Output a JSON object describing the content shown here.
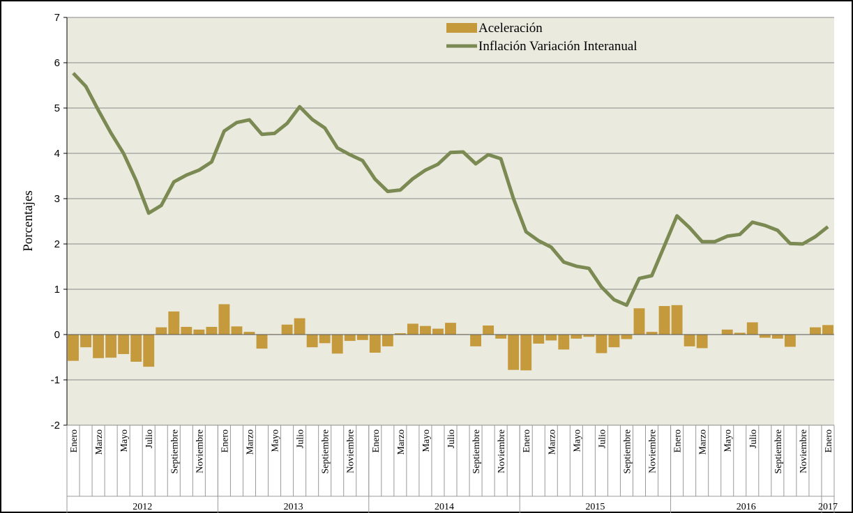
{
  "chart_data": {
    "type": "combo",
    "y_label": "Porcentajes",
    "categories": [
      "Enero",
      null,
      "Marzo",
      null,
      "Mayo",
      null,
      "Julio",
      null,
      "Septiembre",
      null,
      "Noviembre",
      null,
      "Enero",
      null,
      "Marzo",
      null,
      "Mayo",
      null,
      "Julio",
      null,
      "Septiembre",
      null,
      "Noviembre",
      null,
      "Enero",
      null,
      "Marzo",
      null,
      "Mayo",
      null,
      "Julio",
      null,
      "Septiembre",
      null,
      "Noviembre",
      null,
      "Enero",
      null,
      "Marzo",
      null,
      "Mayo",
      null,
      "Julio",
      null,
      "Septiembre",
      null,
      "Noviembre",
      null,
      "Enero",
      null,
      "Marzo",
      null,
      "Mayo",
      null,
      "Julio",
      null,
      "Septiembre",
      null,
      "Noviembre",
      null,
      "Enero"
    ],
    "year_labels": [
      "2012",
      "2013",
      "2014",
      "2015",
      "2016",
      "2017"
    ],
    "series": [
      {
        "name": "Aceleración",
        "type": "bar",
        "color": "#c49a3c",
        "values": [
          -0.58,
          -0.28,
          -0.52,
          -0.51,
          -0.43,
          -0.6,
          -0.71,
          0.16,
          0.51,
          0.17,
          0.11,
          0.17,
          0.67,
          0.18,
          0.06,
          -0.31,
          0.01,
          0.22,
          0.36,
          -0.28,
          -0.19,
          -0.42,
          -0.14,
          -0.12,
          -0.4,
          -0.26,
          0.03,
          0.24,
          0.19,
          0.13,
          0.26,
          0.01,
          -0.26,
          0.2,
          -0.09,
          -0.78,
          -0.79,
          -0.2,
          -0.13,
          -0.33,
          -0.09,
          -0.05,
          -0.41,
          -0.28,
          -0.1,
          0.58,
          0.06,
          0.63,
          0.65,
          -0.26,
          -0.3,
          0,
          0.11,
          0.04,
          0.27,
          -0.07,
          -0.09,
          -0.27,
          0,
          0.16,
          0.21
        ]
      },
      {
        "name": "Inflación Variación Interanual",
        "type": "line",
        "color": "#7b8a52",
        "values": [
          5.77,
          5.48,
          4.95,
          4.45,
          4.0,
          3.4,
          2.68,
          2.85,
          3.37,
          3.52,
          3.63,
          3.81,
          4.49,
          4.68,
          4.74,
          4.42,
          4.44,
          4.66,
          5.03,
          4.75,
          4.56,
          4.12,
          3.97,
          3.84,
          3.43,
          3.16,
          3.19,
          3.44,
          3.63,
          3.76,
          4.02,
          4.03,
          3.77,
          3.97,
          3.88,
          3.0,
          2.27,
          2.07,
          1.93,
          1.6,
          1.51,
          1.46,
          1.05,
          0.77,
          0.65,
          1.24,
          1.3,
          1.96,
          2.62,
          2.36,
          2.05,
          2.05,
          2.17,
          2.21,
          2.48,
          2.41,
          2.3,
          2.01,
          2.0,
          2.16,
          2.38
        ]
      }
    ],
    "ylim": [
      -2,
      7
    ],
    "yticks": [
      -2,
      -1,
      0,
      1,
      2,
      3,
      4,
      5,
      6,
      7
    ],
    "grid": true,
    "legend": "top"
  }
}
